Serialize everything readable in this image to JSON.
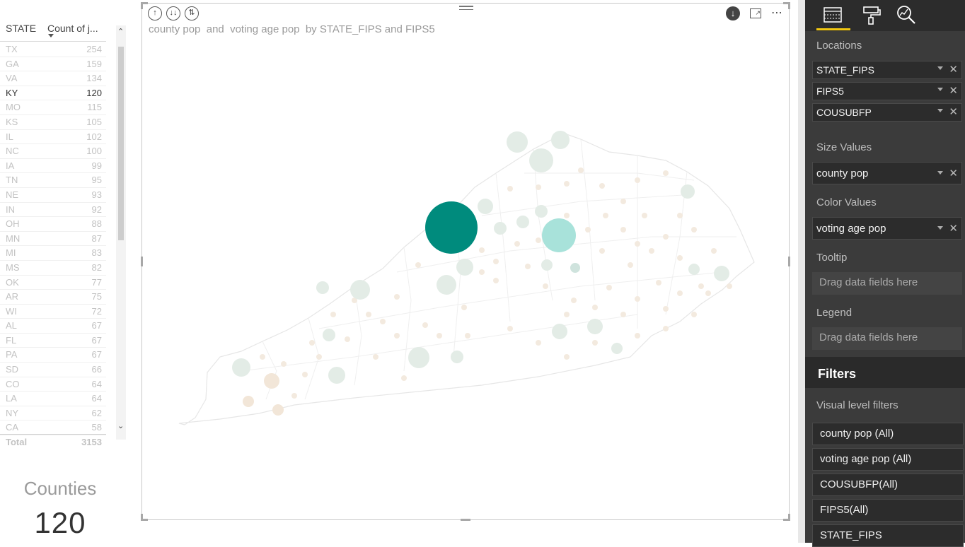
{
  "table": {
    "col_state": "STATE",
    "col_count": "Count of j...",
    "rows": [
      {
        "state": "TX",
        "count": "254"
      },
      {
        "state": "GA",
        "count": "159"
      },
      {
        "state": "VA",
        "count": "134"
      },
      {
        "state": "KY",
        "count": "120"
      },
      {
        "state": "MO",
        "count": "115"
      },
      {
        "state": "KS",
        "count": "105"
      },
      {
        "state": "IL",
        "count": "102"
      },
      {
        "state": "NC",
        "count": "100"
      },
      {
        "state": "IA",
        "count": "99"
      },
      {
        "state": "TN",
        "count": "95"
      },
      {
        "state": "NE",
        "count": "93"
      },
      {
        "state": "IN",
        "count": "92"
      },
      {
        "state": "OH",
        "count": "88"
      },
      {
        "state": "MN",
        "count": "87"
      },
      {
        "state": "MI",
        "count": "83"
      },
      {
        "state": "MS",
        "count": "82"
      },
      {
        "state": "OK",
        "count": "77"
      },
      {
        "state": "AR",
        "count": "75"
      },
      {
        "state": "WI",
        "count": "72"
      },
      {
        "state": "AL",
        "count": "67"
      },
      {
        "state": "FL",
        "count": "67"
      },
      {
        "state": "PA",
        "count": "67"
      },
      {
        "state": "SD",
        "count": "66"
      },
      {
        "state": "CO",
        "count": "64"
      },
      {
        "state": "LA",
        "count": "64"
      },
      {
        "state": "NY",
        "count": "62"
      },
      {
        "state": "CA",
        "count": "58"
      }
    ],
    "selected_state": "KY",
    "total_label": "Total",
    "total_value": "3153"
  },
  "card": {
    "label": "Counties",
    "value": "120"
  },
  "visual": {
    "title": "county pop  and  voting age pop  by STATE_FIPS and FIPS5",
    "map": "Kentucky counties"
  },
  "colors": {
    "accent_dark_teal": "#008b7d",
    "accent_light_teal": "#a8e2da",
    "bubble_faint": "#e3ece6",
    "bubble_beige": "#f2e6d8",
    "pane_bg": "#3b3b3b",
    "tab_underline": "#f2c811"
  },
  "pane": {
    "tabs": [
      "fields-icon",
      "format-paint-roller-icon",
      "analytics-magnifier-icon"
    ],
    "locations_title": "Locations",
    "locations": [
      "STATE_FIPS",
      "FIPS5",
      "COUSUBFP"
    ],
    "size_title": "Size Values",
    "size_field": "county pop",
    "color_title": "Color Values",
    "color_field": "voting age pop",
    "tooltip_title": "Tooltip",
    "tooltip_placeholder": "Drag data fields here",
    "legend_title": "Legend",
    "legend_placeholder": "Drag data fields here",
    "filters_title": "Filters",
    "visual_filters_title": "Visual level filters",
    "filters": [
      "county pop (All)",
      "voting age pop (All)",
      "COUSUBFP(All)",
      "FIPS5(All)",
      "STATE_FIPS"
    ]
  }
}
